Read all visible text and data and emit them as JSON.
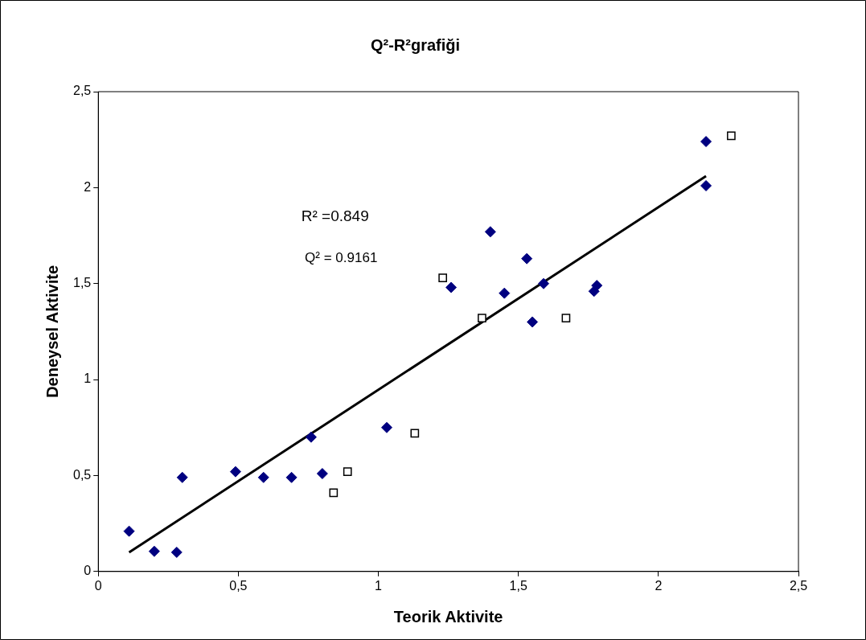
{
  "chart_data": {
    "type": "scatter",
    "title": "Q²-R²grafiği",
    "xlabel": "Teorik Aktivite",
    "ylabel": "Deneysel Aktivite",
    "series": [
      {
        "color": "#000080",
        "marker": "diamond",
        "x": [
          0.11,
          0.2,
          0.28,
          0.3,
          0.49,
          0.59,
          0.69,
          0.76,
          0.8,
          1.03,
          1.26,
          1.4,
          1.45,
          1.53,
          1.55,
          1.59,
          1.77,
          1.78,
          2.17,
          2.17
        ],
        "values": [
          0.21,
          0.105,
          0.1,
          0.49,
          0.52,
          0.49,
          0.49,
          0.7,
          0.51,
          0.75,
          1.48,
          1.77,
          1.45,
          1.63,
          1.3,
          1.5,
          1.46,
          1.49,
          2.24,
          2.01
        ]
      },
      {
        "color": "#000000",
        "marker": "square",
        "x": [
          0.84,
          0.89,
          1.13,
          1.23,
          1.37,
          1.67,
          2.26
        ],
        "values": [
          0.41,
          0.52,
          0.72,
          1.53,
          1.32,
          1.32,
          2.27
        ]
      },
      {
        "type": "line",
        "color": "#000000",
        "marker": "none",
        "line_style": "solid",
        "x": [
          0.11,
          2.17
        ],
        "values": [
          0.1,
          2.06
        ]
      }
    ],
    "xlim": [
      0,
      2.5
    ],
    "ylim": [
      0,
      2.5
    ],
    "xticks": [
      0,
      {
        "value": 0.5,
        "label": "0,5"
      },
      1,
      {
        "value": 1.5,
        "label": "1,5"
      },
      2,
      {
        "value": 2.5,
        "label": "2,5"
      }
    ],
    "yticks": [
      0,
      {
        "value": 0.5,
        "label": "0,5"
      },
      1,
      {
        "value": 1.5,
        "label": "1,5"
      },
      2,
      {
        "value": 2.5,
        "label": "2,5"
      }
    ],
    "grid": false,
    "legend": false,
    "annotations": [
      "R² =0.849",
      "Q² = 0.9161"
    ]
  }
}
